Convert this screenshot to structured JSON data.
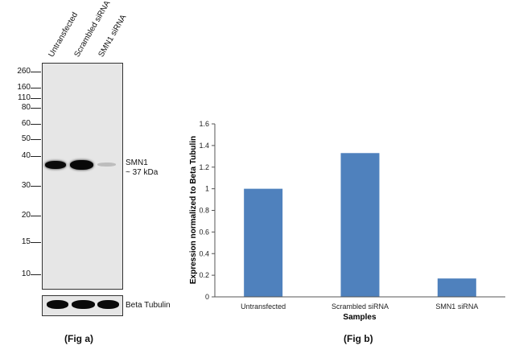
{
  "figure_a": {
    "lanes": [
      "Untransfected",
      "Scrambled siRNA",
      "SMN1 siRNA"
    ],
    "markers": [
      "260",
      "160",
      "110",
      "80",
      "60",
      "50",
      "40",
      "30",
      "20",
      "15",
      "10"
    ],
    "band_label_line1": "SMN1",
    "band_label_line2": "~ 37 kDa",
    "control_label": "Beta Tubulin",
    "caption": "(Fig a)"
  },
  "figure_b": {
    "caption": "(Fig b)"
  },
  "chart_data": {
    "type": "bar",
    "categories": [
      "Untransfected",
      "Scrambled siRNA",
      "SMN1 siRNA"
    ],
    "values": [
      1.0,
      1.33,
      0.17
    ],
    "title": "",
    "xlabel": "Samples",
    "ylabel": "Expression  normalized to Beta Tubulin",
    "ylim": [
      0,
      1.6
    ],
    "yticks": [
      "0",
      "0.2",
      "0.4",
      "0.6",
      "0.8",
      "1",
      "1.2",
      "1.4",
      "1.6"
    ],
    "bar_color": "#4f81bd",
    "grid": false
  }
}
